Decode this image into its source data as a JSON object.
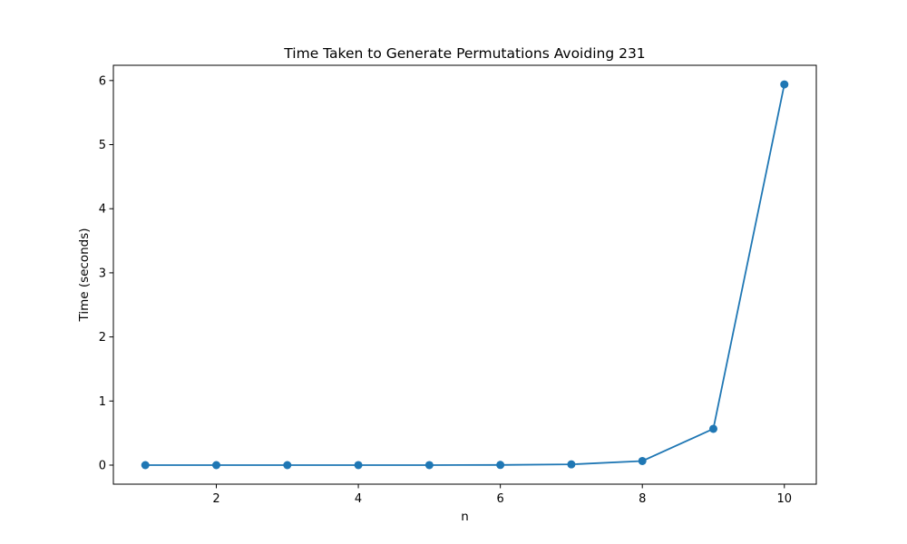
{
  "chart_data": {
    "type": "line",
    "title": "Time Taken to Generate Permutations Avoiding 231",
    "xlabel": "n",
    "ylabel": "Time (seconds)",
    "x": [
      1,
      2,
      3,
      4,
      5,
      6,
      7,
      8,
      9,
      10
    ],
    "series": [
      {
        "values": [
          0.0001,
          0.0001,
          0.0001,
          0.0002,
          0.0003,
          0.003,
          0.012,
          0.064,
          0.566,
          5.94
        ],
        "color": "#1f77b4",
        "marker": "circle"
      }
    ],
    "xlim": [
      0.55,
      10.45
    ],
    "ylim": [
      -0.297,
      6.238
    ],
    "xticks": [
      2,
      4,
      6,
      8,
      10
    ],
    "xtick_labels": [
      "2",
      "4",
      "6",
      "8",
      "10"
    ],
    "yticks": [
      0,
      1,
      2,
      3,
      4,
      5,
      6
    ],
    "ytick_labels": [
      "0",
      "1",
      "2",
      "3",
      "4",
      "5",
      "6"
    ],
    "grid": false,
    "legend": "none"
  }
}
